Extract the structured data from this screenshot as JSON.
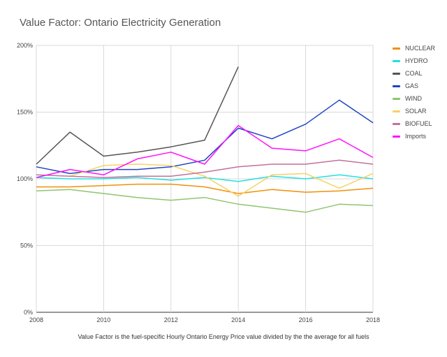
{
  "chart_data": {
    "type": "line",
    "title": "Value Factor: Ontario Electricity Generation",
    "footnote": "Value Factor is the fuel-specific Hourly Ontario Energy Price value divided by the the average for all fuels",
    "x": [
      2008,
      2009,
      2010,
      2011,
      2012,
      2013,
      2014,
      2015,
      2016,
      2017,
      2018
    ],
    "x_ticks": [
      "2008",
      "2010",
      "2012",
      "2014",
      "2016",
      "2018"
    ],
    "y_ticks": [
      "0%",
      "50%",
      "100%",
      "150%",
      "200%"
    ],
    "ylim": [
      0,
      200
    ],
    "grid": true,
    "legend_position": "right",
    "series": [
      {
        "name": "NUCLEAR",
        "color": "#f0900a",
        "values": [
          94,
          94,
          95,
          96,
          96,
          94,
          89,
          92,
          90,
          91,
          93
        ]
      },
      {
        "name": "HYDRO",
        "color": "#22e0e0",
        "values": [
          101,
          100,
          100,
          101,
          99,
          101,
          98,
          102,
          100,
          103,
          100
        ]
      },
      {
        "name": "COAL",
        "color": "#555555",
        "values": [
          111,
          135,
          117,
          120,
          124,
          129,
          184,
          null,
          null,
          null,
          null
        ]
      },
      {
        "name": "GAS",
        "color": "#1f45c4",
        "values": [
          109,
          104,
          107,
          107,
          109,
          114,
          138,
          130,
          141,
          159,
          142
        ]
      },
      {
        "name": "WIND",
        "color": "#8fc46e",
        "values": [
          91,
          92,
          89,
          86,
          84,
          86,
          81,
          78,
          75,
          81,
          80
        ]
      },
      {
        "name": "SOLAR",
        "color": "#f6d266",
        "values": [
          null,
          102,
          110,
          111,
          110,
          102,
          87,
          103,
          104,
          93,
          104
        ]
      },
      {
        "name": "BIOFUEL",
        "color": "#c2719c",
        "values": [
          103,
          102,
          101,
          102,
          102,
          105,
          109,
          111,
          111,
          114,
          111
        ]
      },
      {
        "name": "Imports",
        "color": "#ff10ff",
        "values": [
          101,
          107,
          103,
          115,
          120,
          111,
          140,
          123,
          121,
          130,
          116
        ]
      }
    ]
  }
}
